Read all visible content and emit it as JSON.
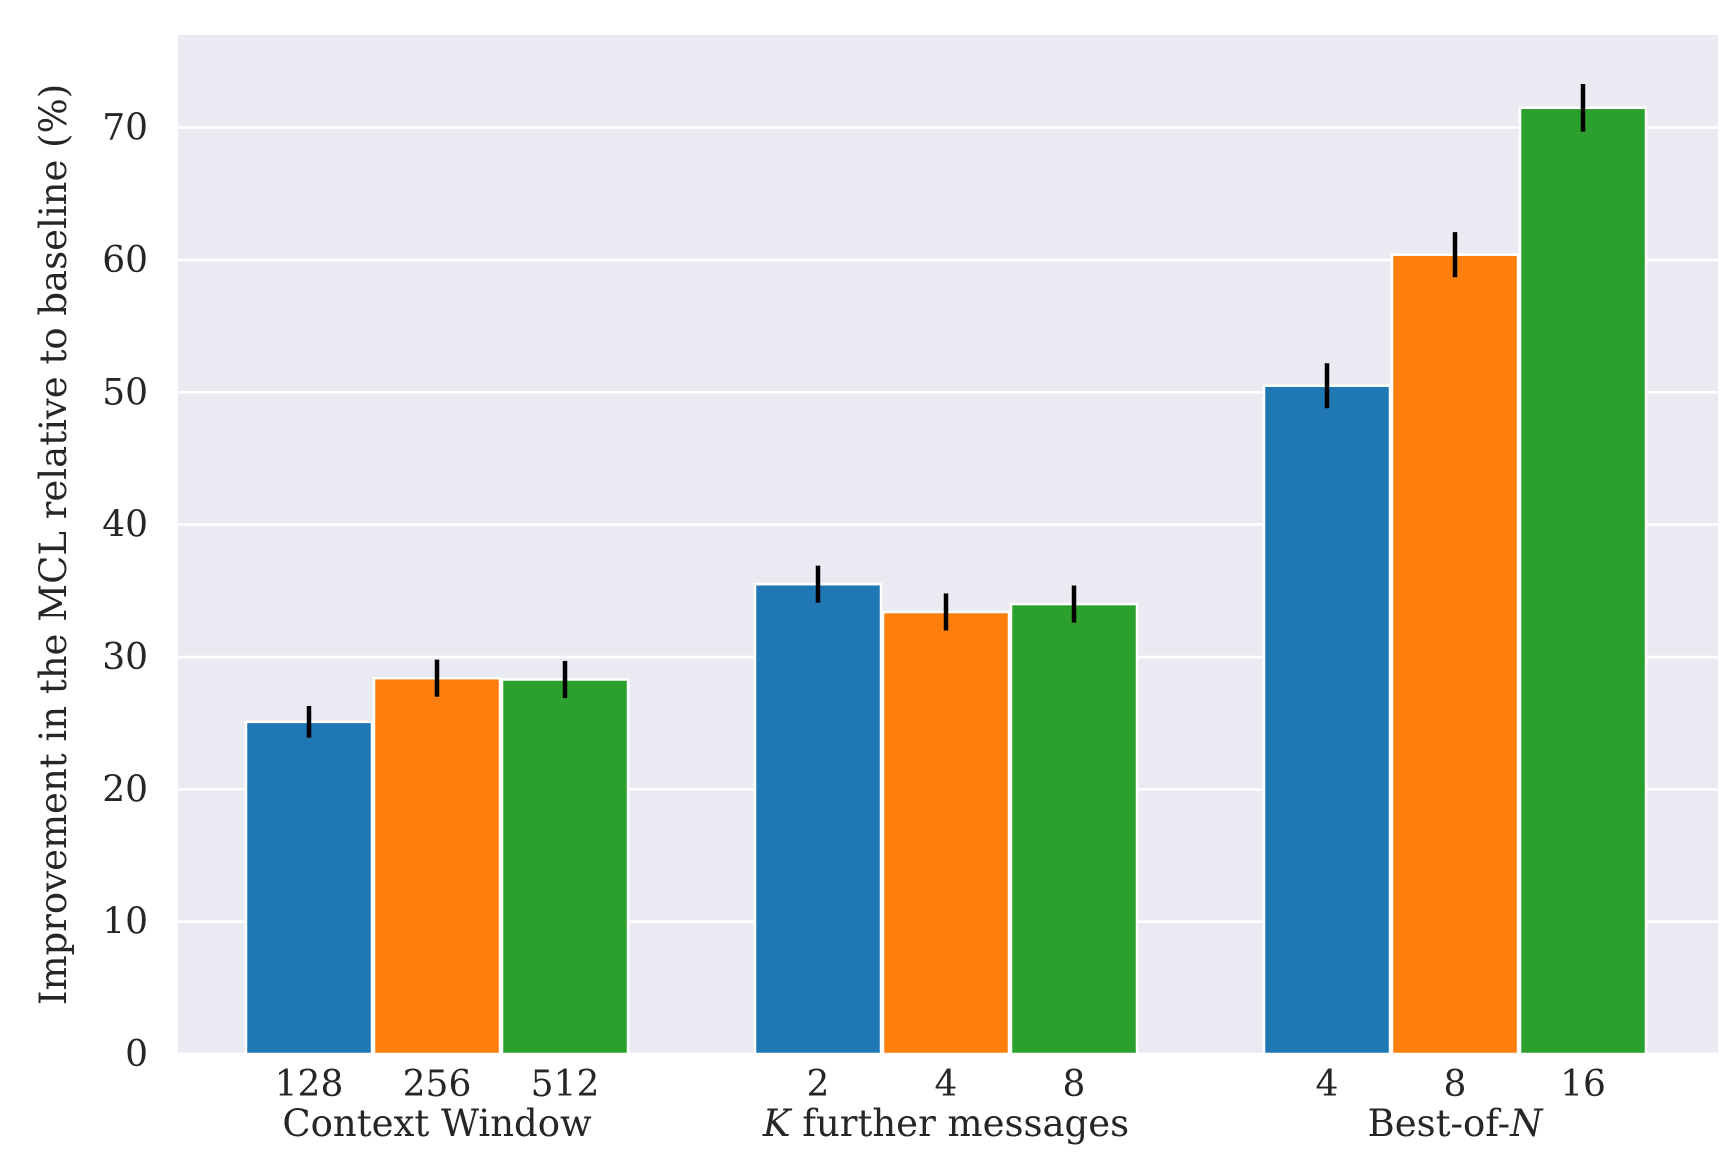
{
  "chart_data": {
    "type": "bar",
    "ylabel": "Improvement in the MCL relative to baseline (%)",
    "ylim": [
      0,
      77
    ],
    "yticks": [
      0,
      10,
      20,
      30,
      40,
      50,
      60,
      70
    ],
    "grid": true,
    "background": "#eaeaf2",
    "colors": [
      "#1f77b4",
      "#ff7f0e",
      "#2ca02c"
    ],
    "groups": [
      {
        "label_parts": [
          {
            "text": "Context Window",
            "italic": false
          }
        ],
        "bars": [
          {
            "label": "128",
            "value": 25.1,
            "err": 1.2
          },
          {
            "label": "256",
            "value": 28.4,
            "err": 1.4
          },
          {
            "label": "512",
            "value": 28.3,
            "err": 1.4
          }
        ]
      },
      {
        "label_parts": [
          {
            "text": "K",
            "italic": true
          },
          {
            "text": " further messages",
            "italic": false
          }
        ],
        "bars": [
          {
            "label": "2",
            "value": 35.5,
            "err": 1.4
          },
          {
            "label": "4",
            "value": 33.4,
            "err": 1.4
          },
          {
            "label": "8",
            "value": 34.0,
            "err": 1.4
          }
        ]
      },
      {
        "label_parts": [
          {
            "text": "Best-of-",
            "italic": false
          },
          {
            "text": "N",
            "italic": true
          }
        ],
        "bars": [
          {
            "label": "4",
            "value": 50.5,
            "err": 1.7
          },
          {
            "label": "8",
            "value": 60.4,
            "err": 1.7
          },
          {
            "label": "16",
            "value": 71.5,
            "err": 1.8
          }
        ]
      }
    ]
  }
}
